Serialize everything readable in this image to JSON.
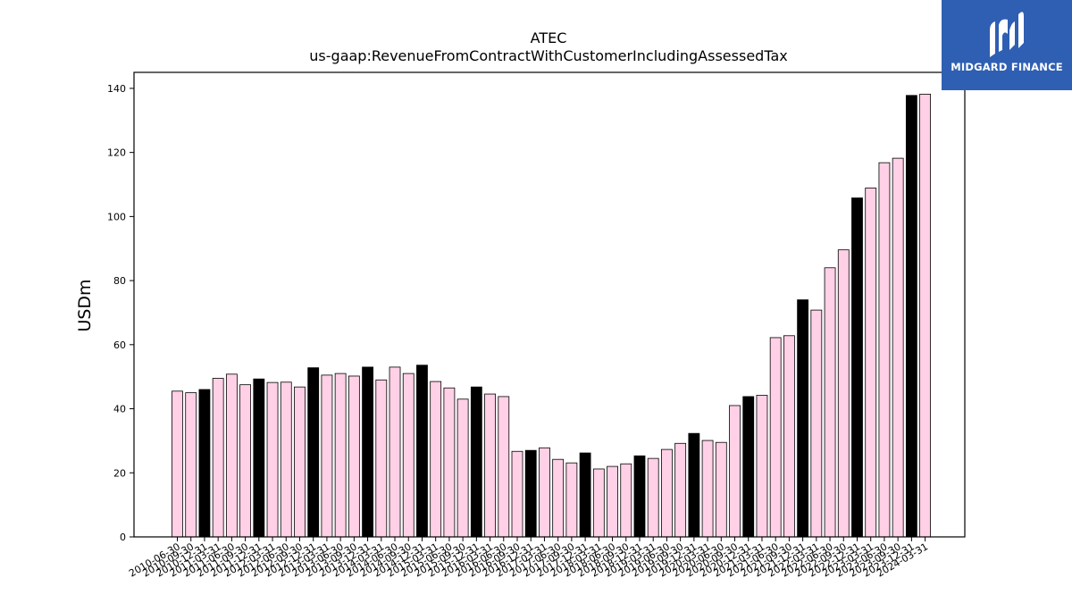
{
  "chart_data": {
    "type": "bar",
    "title": "ATEC",
    "subtitle": "us-gaap:RevenueFromContractWithCustomerIncludingAssessedTax",
    "xlabel": "",
    "ylabel": "USDm",
    "ylim": [
      0,
      145
    ],
    "yticks": [
      0,
      20,
      40,
      60,
      80,
      100,
      120,
      140
    ],
    "grid": false,
    "colors": {
      "quarter": "#ffd0e6",
      "annual": "#000000",
      "edge": "#000000"
    },
    "categories": [
      "2010-06-30",
      "2010-09-30",
      "2010-12-31",
      "2011-03-31",
      "2011-06-30",
      "2011-09-30",
      "2011-12-31",
      "2012-03-31",
      "2012-06-30",
      "2012-09-30",
      "2012-12-31",
      "2013-03-31",
      "2013-06-30",
      "2013-09-30",
      "2013-12-31",
      "2014-03-31",
      "2014-06-30",
      "2014-09-30",
      "2014-12-31",
      "2015-03-31",
      "2015-06-30",
      "2015-09-30",
      "2015-12-31",
      "2016-03-31",
      "2016-06-30",
      "2016-09-30",
      "2016-12-31",
      "2017-03-31",
      "2017-06-30",
      "2017-09-30",
      "2017-12-31",
      "2018-03-31",
      "2018-06-30",
      "2018-09-30",
      "2018-12-31",
      "2019-03-31",
      "2019-06-30",
      "2019-09-30",
      "2019-12-31",
      "2020-03-31",
      "2020-06-30",
      "2020-09-30",
      "2020-12-31",
      "2021-03-31",
      "2021-06-30",
      "2021-09-30",
      "2021-12-31",
      "2022-03-31",
      "2022-06-30",
      "2022-09-30",
      "2022-12-31",
      "2023-03-31",
      "2023-06-30",
      "2023-09-30",
      "2023-12-31",
      "2024-03-31"
    ],
    "values": [
      45.5,
      45.0,
      46.0,
      49.5,
      50.8,
      47.5,
      49.3,
      48.2,
      48.3,
      46.8,
      52.8,
      50.5,
      51.0,
      50.2,
      53.0,
      49.0,
      53.0,
      51.0,
      53.6,
      48.5,
      46.5,
      43.0,
      46.8,
      44.6,
      43.8,
      26.7,
      27.0,
      27.8,
      24.2,
      23.1,
      26.2,
      21.2,
      22.0,
      22.8,
      25.3,
      24.5,
      27.3,
      29.2,
      32.3,
      30.1,
      29.5,
      41.0,
      43.8,
      44.2,
      62.2,
      62.8,
      74.0,
      70.8,
      84.0,
      89.6,
      105.8,
      108.9,
      116.8,
      118.2,
      137.8,
      138.2
    ],
    "annual_flags": [
      0,
      0,
      1,
      0,
      0,
      0,
      1,
      0,
      0,
      0,
      1,
      0,
      0,
      0,
      1,
      0,
      0,
      0,
      1,
      0,
      0,
      0,
      1,
      0,
      0,
      0,
      1,
      0,
      0,
      0,
      1,
      0,
      0,
      0,
      1,
      0,
      0,
      0,
      1,
      0,
      0,
      0,
      1,
      0,
      0,
      0,
      1,
      0,
      0,
      0,
      1,
      0,
      0,
      0,
      1,
      0
    ]
  },
  "logo": {
    "text": "MIDGARD FINANCE"
  }
}
